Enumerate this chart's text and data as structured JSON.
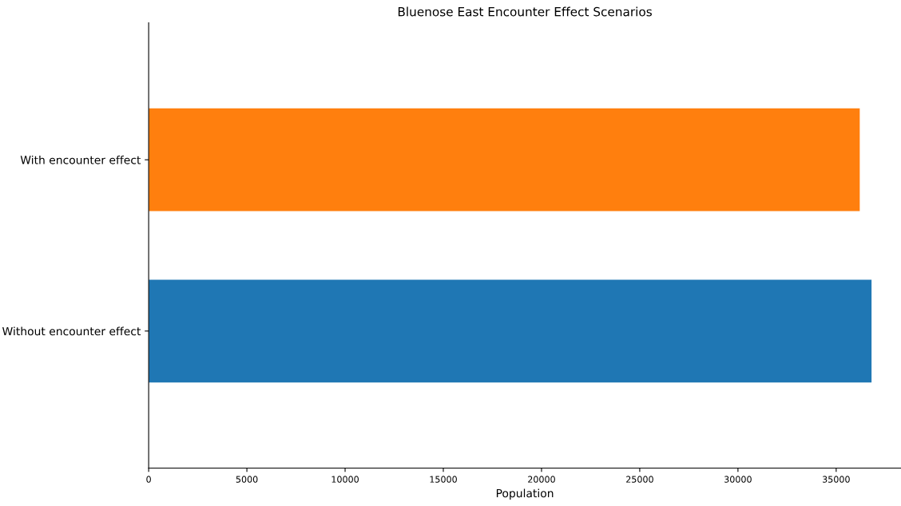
{
  "chart_data": {
    "type": "bar",
    "orientation": "horizontal",
    "title": "Bluenose East Encounter Effect Scenarios",
    "xlabel": "Population",
    "categories": [
      "With encounter effect",
      "Without encounter effect"
    ],
    "values": [
      36200,
      36800
    ],
    "colors": [
      "#ff7f0e",
      "#1f77b4"
    ],
    "xlim": [
      0,
      38300
    ],
    "xticks": [
      0,
      5000,
      10000,
      15000,
      20000,
      25000,
      30000,
      35000
    ],
    "grid": false,
    "legend": false
  }
}
